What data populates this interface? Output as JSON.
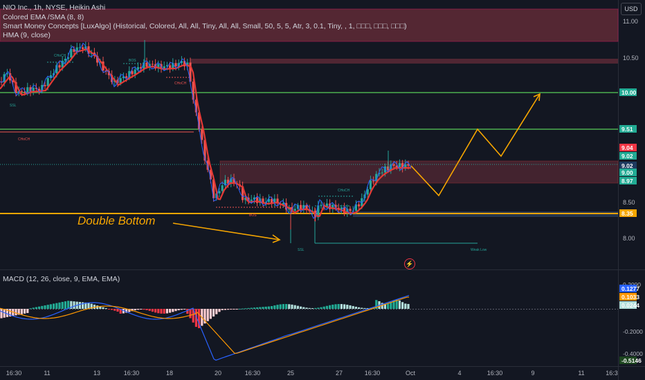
{
  "legend": {
    "symbol_line": "NIO Inc., 1h, NYSE, Heikin Ashi",
    "indicators": [
      "Colored EMA /SMA (8, 8)",
      "Smart Money Concepts [LuxAlgo] (Historical, Colored, All, All, Tiny, All, All, Small, 50, 5, 5, Atr, 3, 0.1, Tiny, , 1, □□□, □□□, □□□)",
      "HMA (9, close)"
    ],
    "macd": "MACD (12, 26, close, 9, EMA, EMA)"
  },
  "currency_button": "USD",
  "price_axis": {
    "ticks": [
      "11.00",
      "10.50",
      "8.50",
      "8.00"
    ],
    "badges": [
      {
        "text": "10.00",
        "color": "#22ab94"
      },
      {
        "text": "9.51",
        "color": "#22ab94"
      },
      {
        "text": "9.04",
        "color": "#f23645"
      },
      {
        "text": "9.02",
        "color": "#22ab94"
      },
      {
        "text": "9.02",
        "color": "#1e3a5f"
      },
      {
        "text": "9.00",
        "color": "#22ab94"
      },
      {
        "text": "8.97",
        "color": "#22ab94"
      },
      {
        "text": "8.35",
        "color": "#f7a600"
      }
    ]
  },
  "macd_axis": {
    "ticks": [
      "0.2000",
      "-0.2000",
      "-0.4000"
    ],
    "badges": [
      {
        "text": "0.1277",
        "color": "#2962ff"
      },
      {
        "text": "0.1033",
        "color": "#ff9800"
      },
      {
        "text": "0.0244",
        "color": "#b2dfdb"
      },
      {
        "text": "-0.5146",
        "color": "#1e4620"
      }
    ]
  },
  "time_axis": [
    "16:30",
    "11",
    "13",
    "16:30",
    "18",
    "20",
    "16:30",
    "25",
    "27",
    "16:30",
    "Oct",
    "4",
    "16:30",
    "9",
    "11",
    "16:3"
  ],
  "annotations": {
    "double_bottom": "Double Bottom",
    "smc_labels": [
      "CHoCH",
      "BOS",
      "CHoCH",
      "BOS",
      "CHoCH",
      "CHoCH",
      "BOS",
      "SSL",
      "SSL",
      "Weak Low"
    ]
  },
  "colors": {
    "background": "#131722",
    "up": "#26a69a",
    "down": "#ef5350",
    "ema": "#e53935",
    "hma": "#2962ff",
    "projection": "#f7a600",
    "supply_zone": "#8a3b46",
    "level_line": "#4caf50"
  }
}
